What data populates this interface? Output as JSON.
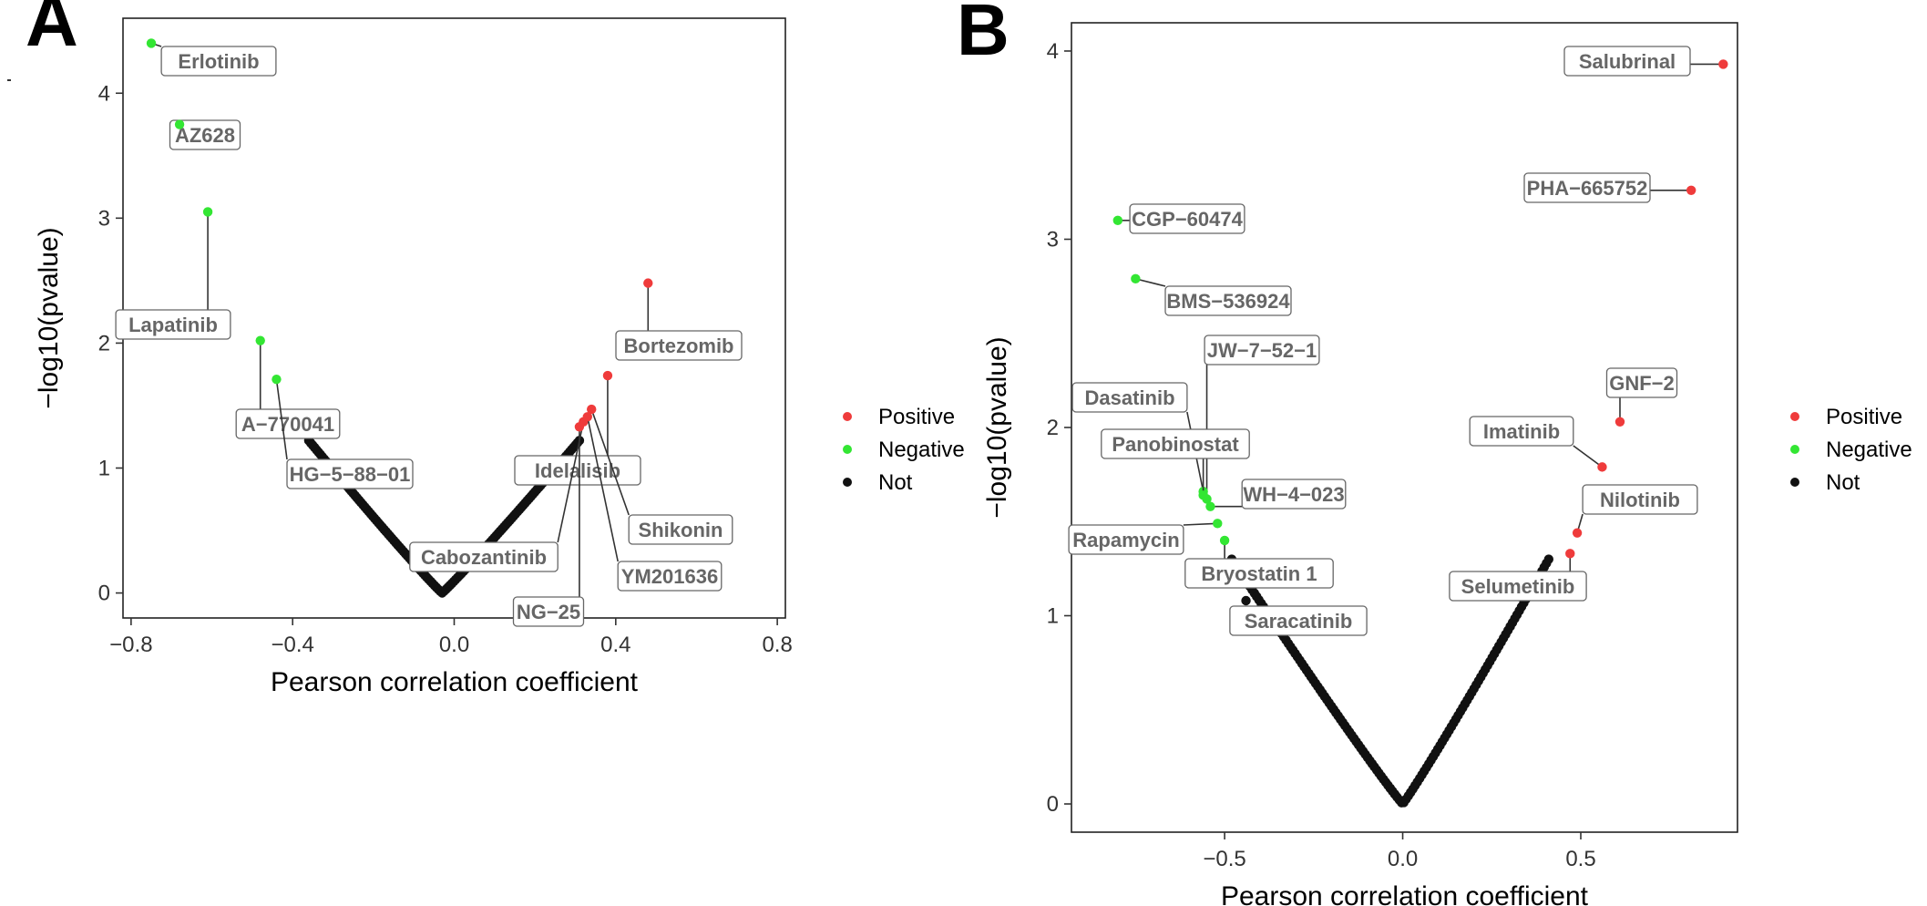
{
  "panels": [
    {
      "letter": "A",
      "legend_title": "",
      "legend_items": [
        "Positive",
        "Negative",
        "Not"
      ]
    },
    {
      "letter": "B",
      "legend_title": "",
      "legend_items": [
        "Positive",
        "Negative",
        "Not"
      ]
    }
  ],
  "colors": {
    "Positive": "#ef3b3b",
    "Negative": "#33e633",
    "Not": "#111111"
  },
  "chart_data": [
    {
      "type": "scatter",
      "title": "A",
      "xlabel": "Pearson correlation coefficient",
      "ylabel": "−log10(pvalue)",
      "xlim": [
        -0.82,
        0.82
      ],
      "ylim": [
        -0.2,
        4.6
      ],
      "xticks": [
        -0.8,
        -0.4,
        0.0,
        0.4,
        0.8
      ],
      "xtick_labels": [
        "−0.8",
        "−0.4",
        "0.0",
        "0.4",
        "0.8"
      ],
      "yticks": [
        0,
        1,
        2,
        3,
        4
      ],
      "ytick_labels": [
        "0",
        "1",
        "2",
        "3",
        "4"
      ],
      "grid": false,
      "legend": "right",
      "background_curve": {
        "group": "Not",
        "center_x": -0.03,
        "x_range": [
          -0.36,
          0.31
        ],
        "y_max": 1.22
      },
      "labeled_points": [
        {
          "name": "Erlotinib",
          "x": -0.75,
          "y": 4.4,
          "group": "Negative"
        },
        {
          "name": "AZ628",
          "x": -0.68,
          "y": 3.75,
          "group": "Negative"
        },
        {
          "name": "Lapatinib",
          "x": -0.61,
          "y": 3.05,
          "group": "Negative"
        },
        {
          "name": "A−770041",
          "x": -0.48,
          "y": 2.02,
          "group": "Negative"
        },
        {
          "name": "HG−5−88−01",
          "x": -0.44,
          "y": 1.71,
          "group": "Negative"
        },
        {
          "name": "Bortezomib",
          "x": 0.48,
          "y": 2.48,
          "group": "Positive"
        },
        {
          "name": "Idelalisib",
          "x": 0.38,
          "y": 1.74,
          "group": "Positive"
        },
        {
          "name": "Shikonin",
          "x": 0.34,
          "y": 1.47,
          "group": "Positive"
        },
        {
          "name": "Cabozantinib",
          "x": 0.32,
          "y": 1.37,
          "group": "Positive"
        },
        {
          "name": "YM201636",
          "x": 0.33,
          "y": 1.41,
          "group": "Positive"
        },
        {
          "name": "NG−25",
          "x": 0.31,
          "y": 1.33,
          "group": "Positive"
        }
      ]
    },
    {
      "type": "scatter",
      "title": "B",
      "xlabel": "Pearson correlation coefficient",
      "ylabel": "−log10(pvalue)",
      "xlim": [
        -0.93,
        0.94
      ],
      "ylim": [
        -0.15,
        4.15
      ],
      "xticks": [
        -0.5,
        0.0,
        0.5
      ],
      "xtick_labels": [
        "−0.5",
        "0.0",
        "0.5"
      ],
      "yticks": [
        0,
        1,
        2,
        3,
        4
      ],
      "ytick_labels": [
        "0",
        "1",
        "2",
        "3",
        "4"
      ],
      "grid": false,
      "legend": "right",
      "background_curve": {
        "group": "Not",
        "center_x": 0.0,
        "x_range": [
          -0.48,
          0.41
        ],
        "y_max": 1.3
      },
      "labeled_points": [
        {
          "name": "Salubrinal",
          "x": 0.9,
          "y": 3.93,
          "group": "Positive"
        },
        {
          "name": "PHA−665752",
          "x": 0.81,
          "y": 3.26,
          "group": "Positive"
        },
        {
          "name": "GNF−2",
          "x": 0.61,
          "y": 2.03,
          "group": "Positive"
        },
        {
          "name": "Imatinib",
          "x": 0.56,
          "y": 1.79,
          "group": "Positive"
        },
        {
          "name": "Nilotinib",
          "x": 0.49,
          "y": 1.44,
          "group": "Positive"
        },
        {
          "name": "Selumetinib",
          "x": 0.47,
          "y": 1.33,
          "group": "Positive"
        },
        {
          "name": "CGP−60474",
          "x": -0.8,
          "y": 3.1,
          "group": "Negative"
        },
        {
          "name": "BMS−536924",
          "x": -0.75,
          "y": 2.79,
          "group": "Negative"
        },
        {
          "name": "JW−7−52−1",
          "x": -0.55,
          "y": 1.62,
          "group": "Negative"
        },
        {
          "name": "Dasatinib",
          "x": -0.56,
          "y": 1.66,
          "group": "Negative"
        },
        {
          "name": "Panobinostat",
          "x": -0.56,
          "y": 1.64,
          "group": "Negative"
        },
        {
          "name": "WH−4−023",
          "x": -0.54,
          "y": 1.58,
          "group": "Negative"
        },
        {
          "name": "Rapamycin",
          "x": -0.52,
          "y": 1.49,
          "group": "Negative"
        },
        {
          "name": "Bryostatin 1",
          "x": -0.5,
          "y": 1.4,
          "group": "Negative"
        },
        {
          "name": "Saracatinib",
          "x": -0.44,
          "y": 1.08,
          "group": "Not"
        }
      ]
    }
  ]
}
